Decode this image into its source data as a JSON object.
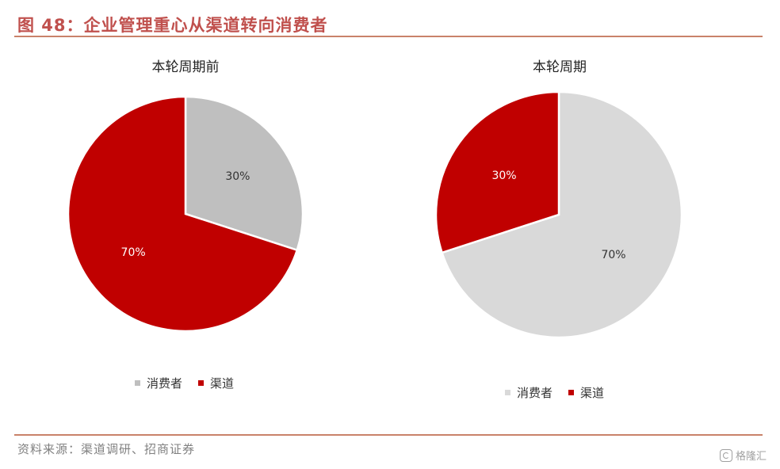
{
  "figure_title": "图 48：企业管理重心从渠道转向消费者",
  "source": "资料来源：渠道调研、招商证券",
  "watermark": "格隆汇",
  "chart_data": [
    {
      "type": "pie",
      "title": "本轮周期前",
      "slices": [
        {
          "label": "消费者",
          "value": 30,
          "data_label": "30%",
          "color": "#bfbfbf"
        },
        {
          "label": "渠道",
          "value": 70,
          "data_label": "70%",
          "color": "#c00000"
        }
      ],
      "legend": [
        "消费者",
        "渠道"
      ],
      "legend_position": "bottom"
    },
    {
      "type": "pie",
      "title": "本轮周期",
      "slices": [
        {
          "label": "消费者",
          "value": 70,
          "data_label": "70%",
          "color": "#d9d9d9"
        },
        {
          "label": "渠道",
          "value": 30,
          "data_label": "30%",
          "color": "#c00000"
        }
      ],
      "legend": [
        "消费者",
        "渠道"
      ],
      "legend_position": "bottom"
    }
  ]
}
